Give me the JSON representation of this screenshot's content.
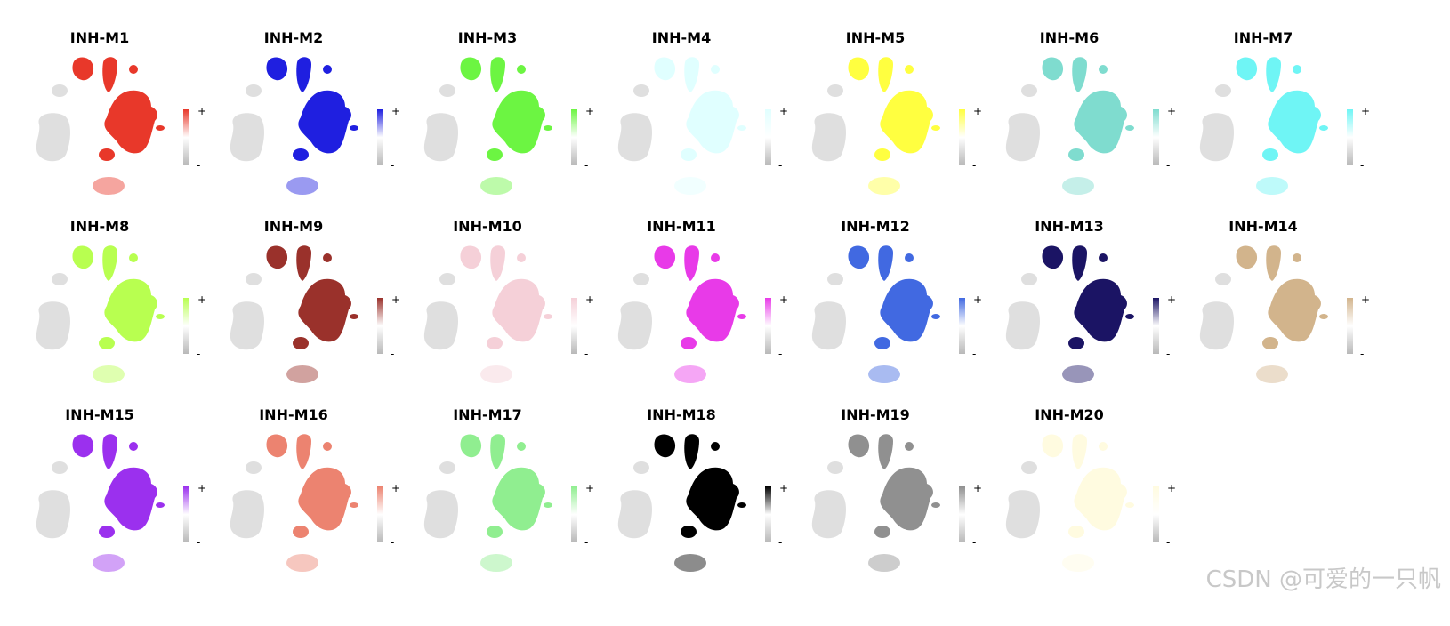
{
  "panels": [
    {
      "title": "INH-M1",
      "color": "#e8382a",
      "high_label": "+",
      "low_label": "-"
    },
    {
      "title": "INH-M2",
      "color": "#1f1fe0",
      "high_label": "+",
      "low_label": "-"
    },
    {
      "title": "INH-M3",
      "color": "#6cf542",
      "high_label": "+",
      "low_label": "-"
    },
    {
      "title": "INH-M4",
      "color": "#e0ffff",
      "high_label": "+",
      "low_label": "-"
    },
    {
      "title": "INH-M5",
      "color": "#ffff40",
      "high_label": "+",
      "low_label": "-"
    },
    {
      "title": "INH-M6",
      "color": "#7fdccf",
      "high_label": "+",
      "low_label": "-"
    },
    {
      "title": "INH-M7",
      "color": "#6ff5f5",
      "high_label": "+",
      "low_label": "-"
    },
    {
      "title": "INH-M8",
      "color": "#b8ff50",
      "high_label": "+",
      "low_label": "-"
    },
    {
      "title": "INH-M9",
      "color": "#9a312b",
      "high_label": "+",
      "low_label": "-"
    },
    {
      "title": "INH-M10",
      "color": "#f5d0d8",
      "high_label": "+",
      "low_label": "-"
    },
    {
      "title": "INH-M11",
      "color": "#e83ae8",
      "high_label": "+",
      "low_label": "-"
    },
    {
      "title": "INH-M12",
      "color": "#4169e1",
      "high_label": "+",
      "low_label": "-"
    },
    {
      "title": "INH-M13",
      "color": "#1b1464",
      "high_label": "+",
      "low_label": "-"
    },
    {
      "title": "INH-M14",
      "color": "#d2b48c",
      "high_label": "+",
      "low_label": "-"
    },
    {
      "title": "INH-M15",
      "color": "#9b30ee",
      "high_label": "+",
      "low_label": "-"
    },
    {
      "title": "INH-M16",
      "color": "#ec8370",
      "high_label": "+",
      "low_label": "-"
    },
    {
      "title": "INH-M17",
      "color": "#90ee90",
      "high_label": "+",
      "low_label": "-"
    },
    {
      "title": "INH-M18",
      "color": "#000000",
      "high_label": "+",
      "low_label": "-"
    },
    {
      "title": "INH-M19",
      "color": "#909090",
      "high_label": "+",
      "low_label": "-"
    },
    {
      "title": "INH-M20",
      "color": "#fffbe0",
      "high_label": "+",
      "low_label": "-"
    }
  ],
  "watermark": "CSDN @可爱的一只帆"
}
